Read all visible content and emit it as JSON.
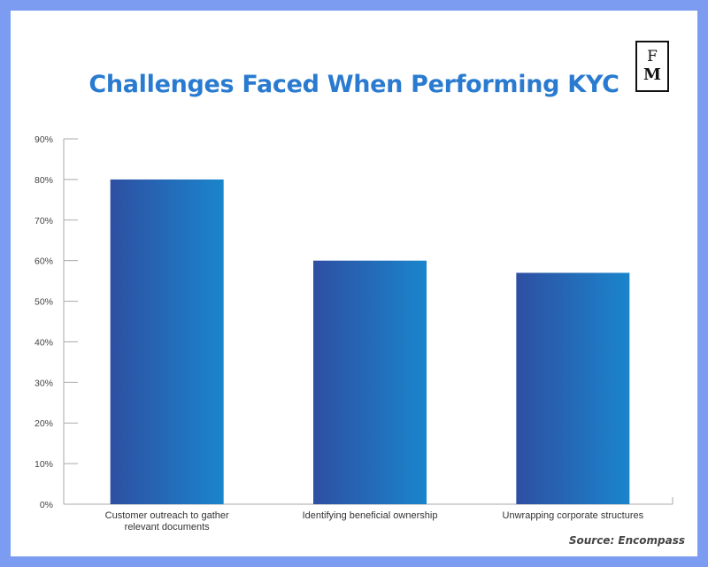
{
  "logo": {
    "top": "F",
    "bottom": "M"
  },
  "source": "Source: Encompass",
  "colors": {
    "bar_start": "#2e4fa2",
    "bar_end": "#1a85cc",
    "title": "#2a7bd0",
    "frame": "#7b9cf0"
  },
  "chart_data": {
    "type": "bar",
    "title": "Challenges Faced When Performing KYC",
    "xlabel": "",
    "ylabel": "",
    "categories": [
      [
        "Customer outreach to gather",
        "relevant documents"
      ],
      [
        "Identifying beneficial ownership"
      ],
      [
        "Unwrapping corporate structures"
      ]
    ],
    "values": [
      80,
      60,
      57
    ],
    "ylim": [
      0,
      90
    ],
    "yticks": [
      0,
      10,
      20,
      30,
      40,
      50,
      60,
      70,
      80,
      90
    ],
    "ytick_labels": [
      "0%",
      "10%",
      "20%",
      "30%",
      "40%",
      "50%",
      "60%",
      "70%",
      "80%",
      "90%"
    ],
    "grid": false,
    "legend": "none"
  }
}
